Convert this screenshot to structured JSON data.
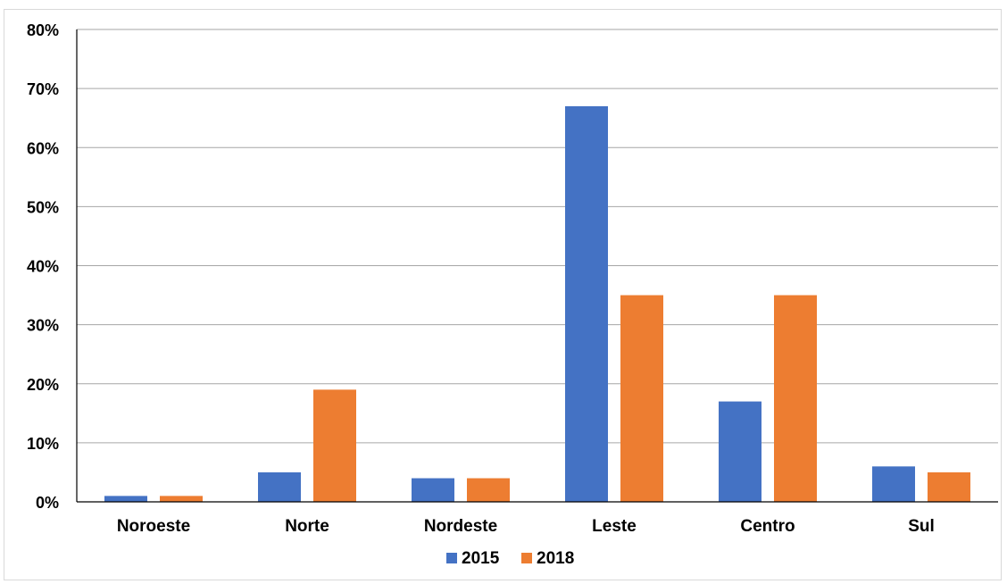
{
  "chart_data": {
    "type": "bar",
    "title": "",
    "xlabel": "",
    "ylabel": "",
    "categories": [
      "Noroeste",
      "Norte",
      "Nordeste",
      "Leste",
      "Centro",
      "Sul"
    ],
    "series": [
      {
        "name": "2015",
        "values": [
          1,
          5,
          4,
          67,
          17,
          6
        ]
      },
      {
        "name": "2018",
        "values": [
          1,
          19,
          4,
          35,
          35,
          5
        ]
      }
    ],
    "ylim": [
      0,
      80
    ],
    "yticks": [
      0,
      10,
      20,
      30,
      40,
      50,
      60,
      70,
      80
    ],
    "ytick_labels": [
      "0%",
      "10%",
      "20%",
      "30%",
      "40%",
      "50%",
      "60%",
      "70%",
      "80%"
    ],
    "grid": true,
    "legend_position": "bottom-center",
    "colors": [
      "#4472c4",
      "#ed7d31"
    ]
  }
}
